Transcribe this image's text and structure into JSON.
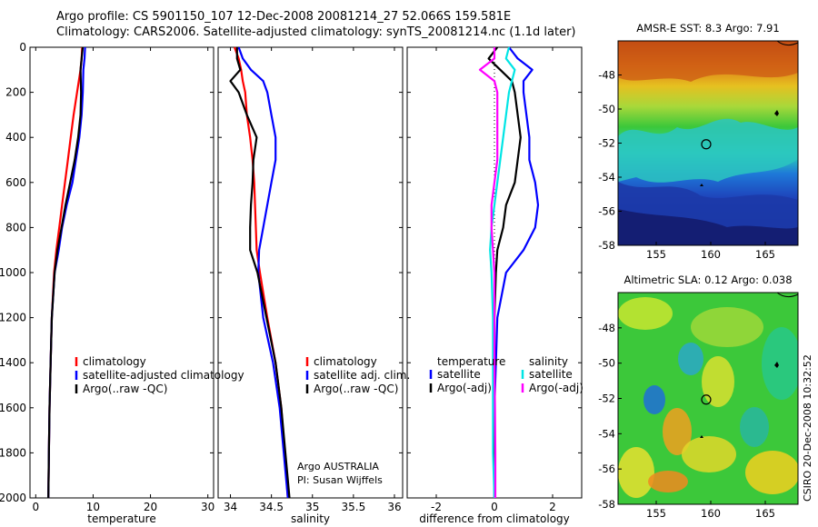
{
  "header": {
    "line1": "Argo profile: CS 5901150_107 12-Dec-2008 20081214_27 52.066S 159.581E",
    "line2": "Climatology: CARS2006. Satellite-adjusted climatology: synTS_20081214.nc (1.1d later)"
  },
  "footer_stamp": "CSIRO 20-Dec-2008 10:32:52",
  "colors": {
    "climatology": "#ff0000",
    "satellite": "#0000ff",
    "argo": "#000000",
    "salinity_satellite": "#00e5e5",
    "salinity_argo": "#ff00ff"
  },
  "chart_data": [
    {
      "type": "line",
      "xlabel": "temperature",
      "ylabel": "",
      "xlim": [
        -1,
        31
      ],
      "ylim": [
        2000,
        0
      ],
      "xticks": [
        "0",
        "10",
        "20",
        "30"
      ],
      "yticks": [
        "0",
        "200",
        "400",
        "600",
        "800",
        "1000",
        "1200",
        "1400",
        "1600",
        "1800",
        "2000"
      ],
      "depth": [
        0,
        50,
        100,
        200,
        300,
        400,
        500,
        600,
        700,
        800,
        900,
        1000,
        1200,
        1400,
        1600,
        1800,
        2000
      ],
      "series": [
        {
          "name": "climatology",
          "color": "#ff0000",
          "values": [
            8.1,
            8.0,
            7.8,
            7.2,
            6.6,
            6.1,
            5.6,
            5.1,
            4.6,
            4.1,
            3.6,
            3.2,
            2.8,
            2.6,
            2.4,
            2.3,
            2.2
          ]
        },
        {
          "name": "satellite-adjusted climatology",
          "color": "#0000ff",
          "values": [
            8.6,
            8.5,
            8.3,
            8.2,
            8.0,
            7.6,
            7.0,
            6.4,
            5.4,
            4.6,
            4.0,
            3.3,
            2.8,
            2.6,
            2.4,
            2.3,
            2.2
          ]
        },
        {
          "name": "Argo(..raw -QC)",
          "color": "#000000",
          "values": [
            8.2,
            8.0,
            7.8,
            7.9,
            7.8,
            7.4,
            6.8,
            6.0,
            5.2,
            4.5,
            3.8,
            3.3,
            2.8,
            2.6,
            2.4,
            2.3,
            2.2
          ]
        }
      ],
      "legend": [
        "climatology",
        "satellite-adjusted climatology",
        "Argo(..raw -QC)"
      ]
    },
    {
      "type": "line",
      "xlabel": "salinity",
      "xlim": [
        33.85,
        36.1
      ],
      "ylim": [
        2000,
        0
      ],
      "xticks": [
        "34",
        "34.5",
        "35",
        "35.5",
        "36"
      ],
      "depth": [
        0,
        50,
        100,
        150,
        200,
        300,
        400,
        500,
        600,
        700,
        800,
        900,
        1000,
        1200,
        1400,
        1600,
        1800,
        2000
      ],
      "series": [
        {
          "name": "climatology",
          "color": "#ff0000",
          "values": [
            34.05,
            34.1,
            34.13,
            34.15,
            34.18,
            34.2,
            34.24,
            34.27,
            34.29,
            34.3,
            34.31,
            34.32,
            34.36,
            34.45,
            34.55,
            34.62,
            34.66,
            34.7
          ]
        },
        {
          "name": "satellite adj. clim.",
          "color": "#0000ff",
          "values": [
            34.1,
            34.15,
            34.25,
            34.4,
            34.45,
            34.5,
            34.55,
            34.55,
            34.5,
            34.45,
            34.4,
            34.35,
            34.34,
            34.4,
            34.52,
            34.6,
            34.65,
            34.7
          ]
        },
        {
          "name": "Argo(..raw -QC)",
          "color": "#000000",
          "values": [
            34.08,
            34.08,
            34.12,
            34.0,
            34.1,
            34.2,
            34.32,
            34.28,
            34.27,
            34.25,
            34.24,
            34.24,
            34.33,
            34.44,
            34.55,
            34.62,
            34.67,
            34.72
          ]
        }
      ],
      "legend": [
        "climatology",
        "satellite adj. clim.",
        "Argo(..raw -QC)"
      ],
      "annotation": [
        "Argo AUSTRALIA",
        "PI: Susan Wijffels"
      ]
    },
    {
      "type": "line",
      "xlabel": "difference from climatology",
      "xlim": [
        -3,
        3
      ],
      "ylim": [
        2000,
        0
      ],
      "xticks": [
        "-2",
        "0",
        "2"
      ],
      "depth": [
        0,
        50,
        100,
        150,
        200,
        300,
        400,
        500,
        600,
        700,
        800,
        900,
        1000,
        1200,
        1400,
        1600,
        1800,
        2000
      ],
      "series": [
        {
          "name": "satellite",
          "group": "temperature",
          "color": "#0000ff",
          "values": [
            0.5,
            0.8,
            1.3,
            1.0,
            1.0,
            1.1,
            1.2,
            1.2,
            1.4,
            1.5,
            1.4,
            1.0,
            0.4,
            0.1,
            0.05,
            0.0,
            0.0,
            0.0
          ]
        },
        {
          "name": "Argo(-adj)",
          "group": "temperature",
          "color": "#000000",
          "values": [
            0.1,
            -0.2,
            0.2,
            0.6,
            0.7,
            0.8,
            0.9,
            0.8,
            0.7,
            0.4,
            0.3,
            0.1,
            0.05,
            0.0,
            0.0,
            0.0,
            0.0,
            0.0
          ]
        },
        {
          "name": "satellite",
          "group": "salinity",
          "color": "#00e5e5",
          "values": [
            0.5,
            0.4,
            0.7,
            0.6,
            0.5,
            0.4,
            0.3,
            0.2,
            0.1,
            0.0,
            -0.1,
            -0.15,
            -0.1,
            -0.05,
            -0.05,
            -0.05,
            -0.05,
            0.0
          ]
        },
        {
          "name": "Argo(-adj)",
          "group": "salinity",
          "color": "#ff00ff",
          "values": [
            0.0,
            0.0,
            -0.5,
            0.0,
            0.1,
            0.1,
            0.1,
            0.1,
            0.0,
            -0.1,
            -0.1,
            -0.05,
            0.0,
            0.0,
            0.0,
            0.02,
            0.03,
            0.03
          ]
        }
      ],
      "legend_headers": [
        "temperature",
        "salinity"
      ],
      "legend": [
        "satellite",
        "Argo(-adj)",
        "satellite",
        "Argo(-adj)"
      ]
    },
    {
      "type": "heatmap",
      "title": "AMSR-E SST: 8.3 Argo: 7.91",
      "xlim": [
        151.5,
        168
      ],
      "ylim": [
        -58,
        -46
      ],
      "xticks": [
        "155",
        "160",
        "165"
      ],
      "yticks": [
        "-48",
        "-50",
        "-52",
        "-54",
        "-56",
        "-58"
      ],
      "argo_position": [
        159.581,
        -52.066
      ]
    },
    {
      "type": "heatmap",
      "title": "Altimetric SLA: 0.12 Argo: 0.038",
      "xlim": [
        151.5,
        168
      ],
      "ylim": [
        -58,
        -46
      ],
      "xticks": [
        "155",
        "160",
        "165"
      ],
      "yticks": [
        "-48",
        "-50",
        "-52",
        "-54",
        "-56",
        "-58"
      ],
      "argo_position": [
        159.581,
        -52.066
      ]
    }
  ]
}
